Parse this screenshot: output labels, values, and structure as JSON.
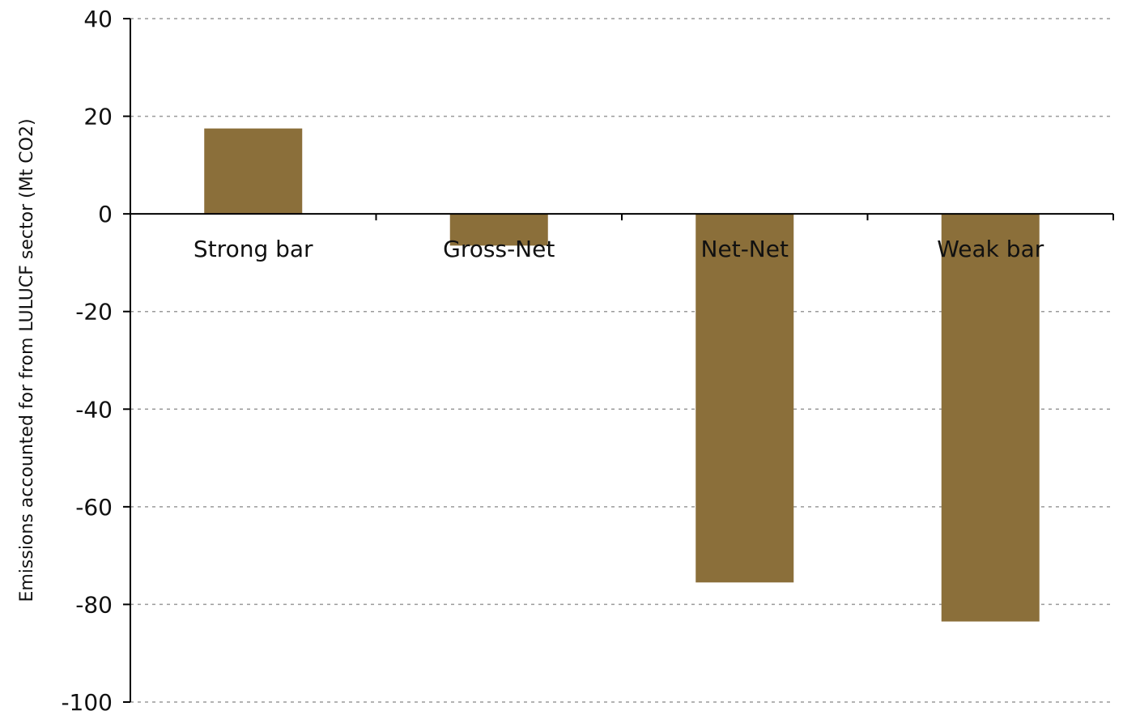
{
  "chart_data": {
    "type": "bar",
    "title": "",
    "xlabel": "",
    "ylabel": "Emissions accounted for from LULUCF sector (Mt CO2)",
    "categories": [
      "Strong bar",
      "Gross-Net",
      "Net-Net",
      "Weak bar"
    ],
    "values": [
      17.5,
      -6.5,
      -75.5,
      -83.5
    ],
    "ylim": [
      -100,
      40
    ],
    "yticks": [
      40,
      20,
      0,
      -20,
      -40,
      -60,
      -80,
      -100
    ],
    "grid": true,
    "bar_color": "#8b6f3a",
    "axis_color": "#000000",
    "grid_color": "#9a9a9a"
  }
}
